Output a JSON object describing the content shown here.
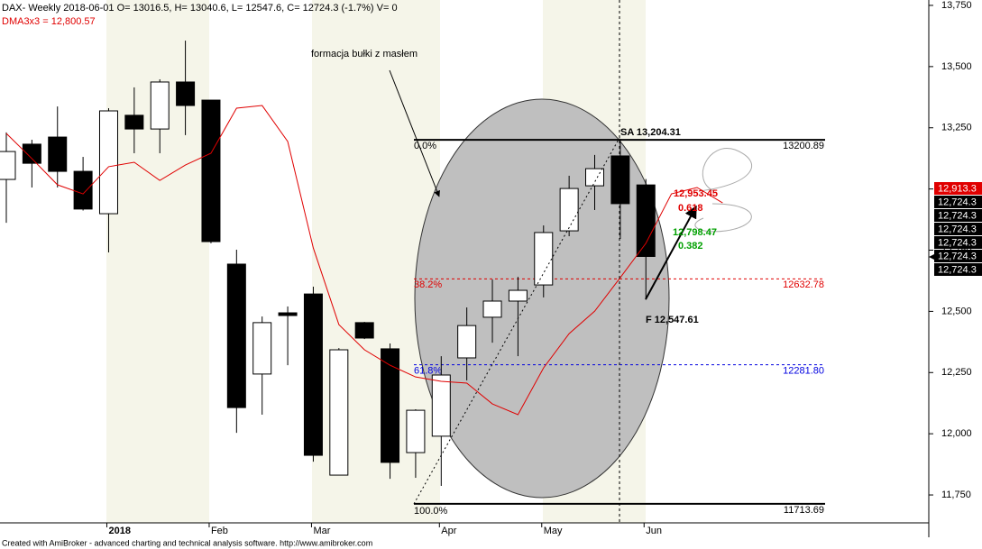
{
  "chart_data": {
    "type": "candlestick",
    "title": "DAX- Weekly 2018-06-01 O= 13016.5, H= 13040.6, L= 12547.6, C= 12724.3 (-1.7%) V= 0",
    "footer": "Created with AmiBroker - advanced charting and technical analysis software. http://www.amibroker.com",
    "categories": [
      null,
      null,
      null,
      null,
      "2018",
      null,
      null,
      null,
      "Feb",
      null,
      null,
      null,
      "Mar",
      null,
      null,
      null,
      null,
      "Apr",
      null,
      null,
      null,
      "May",
      null,
      null,
      null,
      "Jun",
      null,
      null,
      null
    ],
    "open": [
      13039,
      13183,
      13212,
      13072,
      12899,
      13301,
      13245,
      13437,
      13363,
      12693,
      12244,
      12494,
      12571,
      11831,
      12454,
      12347,
      11923,
      11990,
      12310,
      12476,
      12542,
      12608,
      12829,
      13013,
      13135,
      13016.5,
      null,
      null,
      null
    ],
    "high": [
      13231,
      13201,
      13337,
      13131,
      13330,
      13415,
      13448,
      13606,
      13363,
      12752,
      12479,
      12520,
      12601,
      12350,
      12457,
      12369,
      12100,
      12317,
      12516,
      12630,
      12641,
      12851,
      13054,
      13139,
      13204.31,
      13040.6,
      null,
      null,
      null
    ],
    "low": [
      12862,
      13006,
      13006,
      12912,
      12741,
      13146,
      13146,
      13220,
      12778,
      12004,
      12078,
      12280,
      11886,
      11831,
      12387,
      11816,
      11820,
      11787,
      12218,
      12372,
      12317,
      12557,
      12807,
      12914,
      12796,
      12547.6,
      null,
      null,
      null
    ],
    "close": [
      13153,
      13105,
      13072,
      12918,
      13319,
      13245,
      13437,
      13341,
      12785,
      12107,
      12454,
      12483,
      11912,
      12343,
      12391,
      11883,
      12096,
      12240,
      12442,
      12542,
      12586,
      12822,
      13002,
      13083,
      12940,
      12724.3,
      null,
      null,
      null
    ],
    "up_color": "#ffffff",
    "down_color": "#000000",
    "ma": {
      "label": "DMA3x3 = 12,800.57",
      "color": "#e00000",
      "values": [
        13227,
        13124,
        13017,
        12980,
        13091,
        13109,
        13035,
        13098,
        13146,
        13330,
        13341,
        13194,
        12759,
        12446,
        12343,
        12280,
        12232,
        12214,
        12207,
        12122,
        12078,
        12269,
        12409,
        12501,
        12638,
        12778,
        12980,
        13006,
        12943
      ]
    },
    "ylim": [
      11636,
      13772
    ],
    "yticks": [
      {
        "value": 11750,
        "label": "11,750"
      },
      {
        "value": 12000,
        "label": "12,000"
      },
      {
        "value": 12250,
        "label": "12,250"
      },
      {
        "value": 12500,
        "label": "12,500"
      },
      {
        "value": 12750,
        "label": "12,750"
      },
      {
        "value": 13000,
        "label": "13,000"
      },
      {
        "value": 13250,
        "label": "13,250"
      },
      {
        "value": 13500,
        "label": "13,500"
      },
      {
        "value": 13750,
        "label": "13,750"
      }
    ],
    "fib": [
      {
        "percent": "0.0%",
        "value": 13200.89,
        "label": "13200.89",
        "color": "#000000",
        "dashed": false
      },
      {
        "percent": "38.2%",
        "value": 12632.78,
        "label": "12632.78",
        "color": "#e00000",
        "dashed": true
      },
      {
        "percent": "61.8%",
        "value": 12281.8,
        "label": "12281.80",
        "color": "#0000e0",
        "dashed": true
      },
      {
        "percent": "100.0%",
        "value": 11713.69,
        "label": "11713.69",
        "color": "#000000",
        "dashed": false
      }
    ],
    "annotations": [
      "formacja bułki z masłem",
      "SA 13,204.31",
      "F 12,547.61",
      "12,953.45",
      "0.618",
      "12,798.47",
      "0.382"
    ],
    "price_labels": [
      "12,913.3",
      "12,724.3",
      "12,724.3",
      "12,724.3",
      "12,724.3",
      "12,724.3",
      "12,724.3"
    ]
  }
}
